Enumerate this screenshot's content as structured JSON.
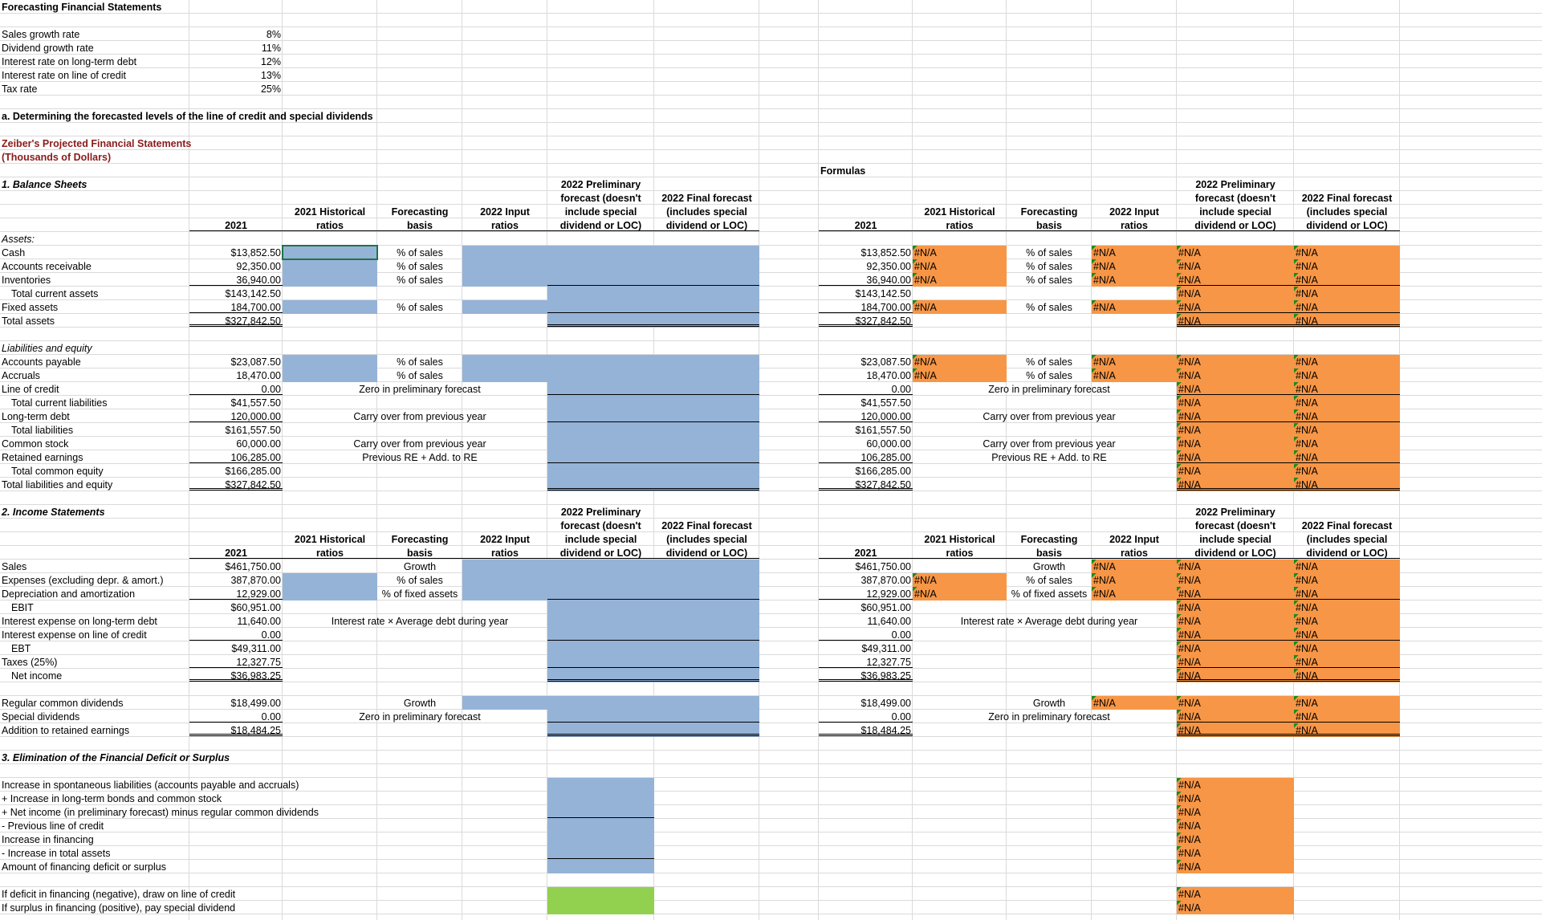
{
  "sheet": {
    "rows": [
      [
        "Forecasting Financial Statements"
      ],
      null,
      [
        "Sales growth rate",
        "8%"
      ],
      [
        "Dividend growth rate",
        "11%"
      ],
      [
        "Interest rate on long-term debt",
        "12%"
      ],
      [
        "Interest rate on line of credit",
        "13%"
      ],
      [
        "Tax rate",
        "25%"
      ],
      null,
      [
        "a. Determining the forecasted levels of the line of credit and special dividends"
      ],
      null,
      [
        "Zeiber's Projected Financial Statements"
      ],
      [
        "(Thousands of Dollars)"
      ],
      [
        null,
        null,
        null,
        null,
        null,
        null,
        null,
        null,
        "Formulas"
      ],
      [
        "1. Balance Sheets",
        null,
        null,
        null,
        null,
        "2022 Preliminary",
        null,
        null,
        null,
        null,
        null,
        null,
        "2022 Preliminary"
      ],
      [
        null,
        null,
        null,
        null,
        null,
        "forecast (doesn't",
        "2022 Final forecast",
        null,
        null,
        null,
        null,
        null,
        "forecast (doesn't",
        "2022 Final forecast"
      ],
      [
        null,
        null,
        "2021 Historical",
        "Forecasting",
        "2022 Input",
        "include special",
        "(includes special",
        null,
        null,
        "2021 Historical",
        "Forecasting",
        "2022 Input",
        "include special",
        "(includes special"
      ],
      [
        null,
        "2021",
        "ratios",
        "basis",
        "ratios",
        "dividend or LOC)",
        "dividend or LOC)",
        null,
        "2021",
        "ratios",
        "basis",
        "ratios",
        "dividend or LOC)",
        "dividend or LOC)"
      ],
      [
        "Assets:"
      ],
      [
        "Cash",
        "$13,852.50",
        null,
        "% of sales",
        null,
        null,
        null,
        null,
        "$13,852.50",
        "#N/A",
        "% of sales",
        "#N/A",
        "#N/A",
        "#N/A"
      ],
      [
        "Accounts receivable",
        "92,350.00",
        null,
        "% of sales",
        null,
        null,
        null,
        null,
        "92,350.00",
        "#N/A",
        "% of sales",
        "#N/A",
        "#N/A",
        "#N/A"
      ],
      [
        "Inventories",
        "36,940.00",
        null,
        "% of sales",
        null,
        null,
        null,
        null,
        "36,940.00",
        "#N/A",
        "% of sales",
        "#N/A",
        "#N/A",
        "#N/A"
      ],
      [
        "Total current assets",
        "$143,142.50",
        null,
        null,
        null,
        null,
        null,
        null,
        "$143,142.50",
        null,
        null,
        null,
        "#N/A",
        "#N/A"
      ],
      [
        "Fixed assets",
        "184,700.00",
        null,
        "% of sales",
        null,
        null,
        null,
        null,
        "184,700.00",
        "#N/A",
        "% of sales",
        "#N/A",
        "#N/A",
        "#N/A"
      ],
      [
        "Total assets",
        "$327,842.50",
        null,
        null,
        null,
        null,
        null,
        null,
        "$327,842.50",
        null,
        null,
        null,
        "#N/A",
        "#N/A"
      ],
      null,
      [
        "Liabilities and equity"
      ],
      [
        "Accounts payable",
        "$23,087.50",
        null,
        "% of sales",
        null,
        null,
        null,
        null,
        "$23,087.50",
        "#N/A",
        "% of sales",
        "#N/A",
        "#N/A",
        "#N/A"
      ],
      [
        "Accruals",
        "18,470.00",
        null,
        "% of sales",
        null,
        null,
        null,
        null,
        "18,470.00",
        "#N/A",
        "% of sales",
        "#N/A",
        "#N/A",
        "#N/A"
      ],
      [
        "Line of credit",
        "0.00",
        null,
        "Zero in preliminary forecast",
        null,
        null,
        null,
        null,
        "0.00",
        null,
        "Zero in preliminary forecast",
        null,
        "#N/A",
        "#N/A"
      ],
      [
        "Total current liabilities",
        "$41,557.50",
        null,
        null,
        null,
        null,
        null,
        null,
        "$41,557.50",
        null,
        null,
        null,
        "#N/A",
        "#N/A"
      ],
      [
        "Long-term debt",
        "120,000.00",
        null,
        "Carry over from previous year",
        null,
        null,
        null,
        null,
        "120,000.00",
        null,
        "Carry over from previous year",
        null,
        "#N/A",
        "#N/A"
      ],
      [
        "Total liabilities",
        "$161,557.50",
        null,
        null,
        null,
        null,
        null,
        null,
        "$161,557.50",
        null,
        null,
        null,
        "#N/A",
        "#N/A"
      ],
      [
        "Common stock",
        "60,000.00",
        null,
        "Carry over from previous year",
        null,
        null,
        null,
        null,
        "60,000.00",
        null,
        "Carry over from previous year",
        null,
        "#N/A",
        "#N/A"
      ],
      [
        "Retained earnings",
        "106,285.00",
        null,
        "Previous RE + Add. to RE",
        null,
        null,
        null,
        null,
        "106,285.00",
        null,
        "Previous RE + Add. to RE",
        null,
        "#N/A",
        "#N/A"
      ],
      [
        "Total common equity",
        "$166,285.00",
        null,
        null,
        null,
        null,
        null,
        null,
        "$166,285.00",
        null,
        null,
        null,
        "#N/A",
        "#N/A"
      ],
      [
        "Total liabilities and equity",
        "$327,842.50",
        null,
        null,
        null,
        null,
        null,
        null,
        "$327,842.50",
        null,
        null,
        null,
        "#N/A",
        "#N/A"
      ],
      null,
      [
        "2. Income Statements",
        null,
        null,
        null,
        null,
        "2022 Preliminary",
        null,
        null,
        null,
        null,
        null,
        null,
        "2022 Preliminary"
      ],
      [
        null,
        null,
        null,
        null,
        null,
        "forecast (doesn't",
        "2022 Final forecast",
        null,
        null,
        null,
        null,
        null,
        "forecast (doesn't",
        "2022 Final forecast"
      ],
      [
        null,
        null,
        "2021 Historical",
        "Forecasting",
        "2022 Input",
        "include special",
        "(includes special",
        null,
        null,
        "2021 Historical",
        "Forecasting",
        "2022 Input",
        "include special",
        "(includes special"
      ],
      [
        null,
        "2021",
        "ratios",
        "basis",
        "ratios",
        "dividend or LOC)",
        "dividend or LOC)",
        null,
        "2021",
        "ratios",
        "basis",
        "ratios",
        "dividend or LOC)",
        "dividend or LOC)"
      ],
      [
        "Sales",
        "$461,750.00",
        null,
        "Growth",
        null,
        null,
        null,
        null,
        "$461,750.00",
        null,
        "Growth",
        "#N/A",
        "#N/A",
        "#N/A"
      ],
      [
        "Expenses (excluding depr. & amort.)",
        "387,870.00",
        null,
        "% of sales",
        null,
        null,
        null,
        null,
        "387,870.00",
        "#N/A",
        "% of sales",
        "#N/A",
        "#N/A",
        "#N/A"
      ],
      [
        "Depreciation and amortization",
        "12,929.00",
        null,
        "% of fixed assets",
        null,
        null,
        null,
        null,
        "12,929.00",
        "#N/A",
        "% of fixed assets",
        "#N/A",
        "#N/A",
        "#N/A"
      ],
      [
        "EBIT",
        "$60,951.00",
        null,
        null,
        null,
        null,
        null,
        null,
        "$60,951.00",
        null,
        null,
        null,
        "#N/A",
        "#N/A"
      ],
      [
        "Interest expense on long-term debt",
        "11,640.00",
        null,
        "Interest rate × Average debt during year",
        null,
        null,
        null,
        null,
        "11,640.00",
        null,
        "Interest rate × Average debt during year",
        null,
        "#N/A",
        "#N/A"
      ],
      [
        "Interest expense on line of credit",
        "0.00",
        null,
        null,
        null,
        null,
        null,
        null,
        "0.00",
        null,
        null,
        null,
        "#N/A",
        "#N/A"
      ],
      [
        "EBT",
        "$49,311.00",
        null,
        null,
        null,
        null,
        null,
        null,
        "$49,311.00",
        null,
        null,
        null,
        "#N/A",
        "#N/A"
      ],
      [
        "Taxes (25%)",
        "12,327.75",
        null,
        null,
        null,
        null,
        null,
        null,
        "12,327.75",
        null,
        null,
        null,
        "#N/A",
        "#N/A"
      ],
      [
        "Net income",
        "$36,983.25",
        null,
        null,
        null,
        null,
        null,
        null,
        "$36,983.25",
        null,
        null,
        null,
        "#N/A",
        "#N/A"
      ],
      null,
      [
        "Regular common dividends",
        "$18,499.00",
        null,
        "Growth",
        null,
        null,
        null,
        null,
        "$18,499.00",
        null,
        "Growth",
        "#N/A",
        "#N/A",
        "#N/A"
      ],
      [
        "Special dividends",
        "0.00",
        null,
        "Zero in preliminary forecast",
        null,
        null,
        null,
        null,
        "0.00",
        null,
        "Zero in preliminary forecast",
        null,
        "#N/A",
        "#N/A"
      ],
      [
        "Addition to retained earnings",
        "$18,484.25",
        null,
        null,
        null,
        null,
        null,
        null,
        "$18,484.25",
        null,
        null,
        null,
        "#N/A",
        "#N/A"
      ],
      null,
      [
        "3. Elimination of the Financial Deficit or Surplus"
      ],
      null,
      [
        "Increase in spontaneous liabilities (accounts payable and accruals)",
        null,
        null,
        null,
        null,
        null,
        null,
        null,
        null,
        null,
        null,
        null,
        "#N/A"
      ],
      [
        "+ Increase in long-term bonds and common stock",
        null,
        null,
        null,
        null,
        null,
        null,
        null,
        null,
        null,
        null,
        null,
        "#N/A"
      ],
      [
        "+ Net income (in preliminary forecast) minus regular common dividends",
        null,
        null,
        null,
        null,
        null,
        null,
        null,
        null,
        null,
        null,
        null,
        "#N/A"
      ],
      [
        "- Previous line of credit",
        null,
        null,
        null,
        null,
        null,
        null,
        null,
        null,
        null,
        null,
        null,
        "#N/A"
      ],
      [
        "Increase in financing",
        null,
        null,
        null,
        null,
        null,
        null,
        null,
        null,
        null,
        null,
        null,
        "#N/A"
      ],
      [
        "- Increase in total assets",
        null,
        null,
        null,
        null,
        null,
        null,
        null,
        null,
        null,
        null,
        null,
        "#N/A"
      ],
      [
        "Amount of financing deficit or surplus",
        null,
        null,
        null,
        null,
        null,
        null,
        null,
        null,
        null,
        null,
        null,
        "#N/A"
      ],
      null,
      [
        "If deficit in financing (negative), draw on line of credit",
        null,
        null,
        null,
        null,
        null,
        null,
        null,
        null,
        null,
        null,
        null,
        "#N/A"
      ],
      [
        "If surplus in financing (positive), pay special dividend",
        null,
        null,
        null,
        null,
        null,
        null,
        null,
        null,
        null,
        null,
        null,
        "#N/A"
      ]
    ]
  }
}
